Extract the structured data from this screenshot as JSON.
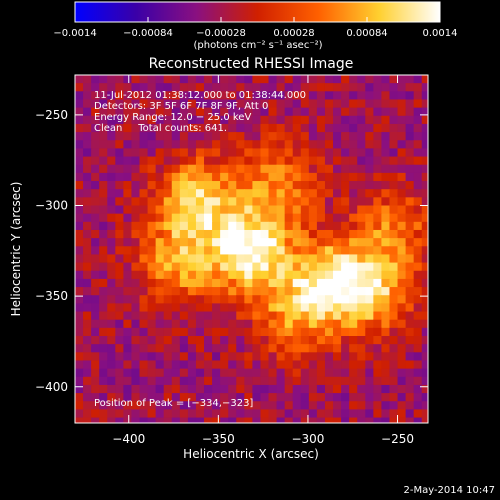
{
  "chart_data": {
    "type": "heatmap",
    "title": "Reconstructed RHESSI Image",
    "xlabel": "Heliocentric X (arcsec)",
    "ylabel": "Heliocentric Y (arcsec)",
    "xlim": [
      -430,
      -233
    ],
    "ylim": [
      -420,
      -228
    ],
    "x_ticks": [
      -400,
      -350,
      -300,
      -250
    ],
    "y_ticks": [
      -250,
      -300,
      -350,
      -400
    ],
    "x_tick_labels": [
      "−400",
      "−350",
      "−300",
      "−250"
    ],
    "y_tick_labels": [
      "−250",
      "−300",
      "−350",
      "−400"
    ],
    "colorbar": {
      "min": -0.0014,
      "max": 0.0014,
      "ticks": [
        -0.0014,
        -0.00084,
        -0.00028,
        0.00028,
        0.00084,
        0.0014
      ],
      "tick_labels": [
        "−0.0014",
        "−0.00084",
        "−0.00028",
        "0.00028",
        "0.00084",
        "0.0014"
      ],
      "units": "(photons cm⁻² s⁻¹ asec⁻²)",
      "colors": [
        "#0000ff",
        "#3a00a8",
        "#8a1080",
        "#d02000",
        "#ff6000",
        "#ffd030",
        "#ffffff"
      ]
    },
    "annotations": [
      "11-Jul-2012 01:38:12.000 to 01:38:44.000",
      "Detectors: 3F 5F 6F 7F 8F 9F, Att 0",
      "Energy Range: 12.0 − 25.0 keV",
      "Clean     Total counts: 641."
    ],
    "peak_label": "Position of Peak = [−334,−323]",
    "peak": [
      -334,
      -323
    ],
    "sources": [
      {
        "x": -334,
        "y": -323,
        "value": 0.0014
      },
      {
        "x": -365,
        "y": -295,
        "value": 0.001
      },
      {
        "x": -290,
        "y": -340,
        "value": 0.0011
      },
      {
        "x": -265,
        "y": -345,
        "value": 0.0008
      },
      {
        "x": -375,
        "y": -330,
        "value": 0.0007
      },
      {
        "x": -320,
        "y": -285,
        "value": 0.0006
      },
      {
        "x": -255,
        "y": -310,
        "value": 0.0005
      },
      {
        "x": -310,
        "y": -360,
        "value": 0.0005
      }
    ],
    "background": -0.0003,
    "grid": false
  },
  "footer": {
    "date": "2-May-2014 10:47"
  }
}
